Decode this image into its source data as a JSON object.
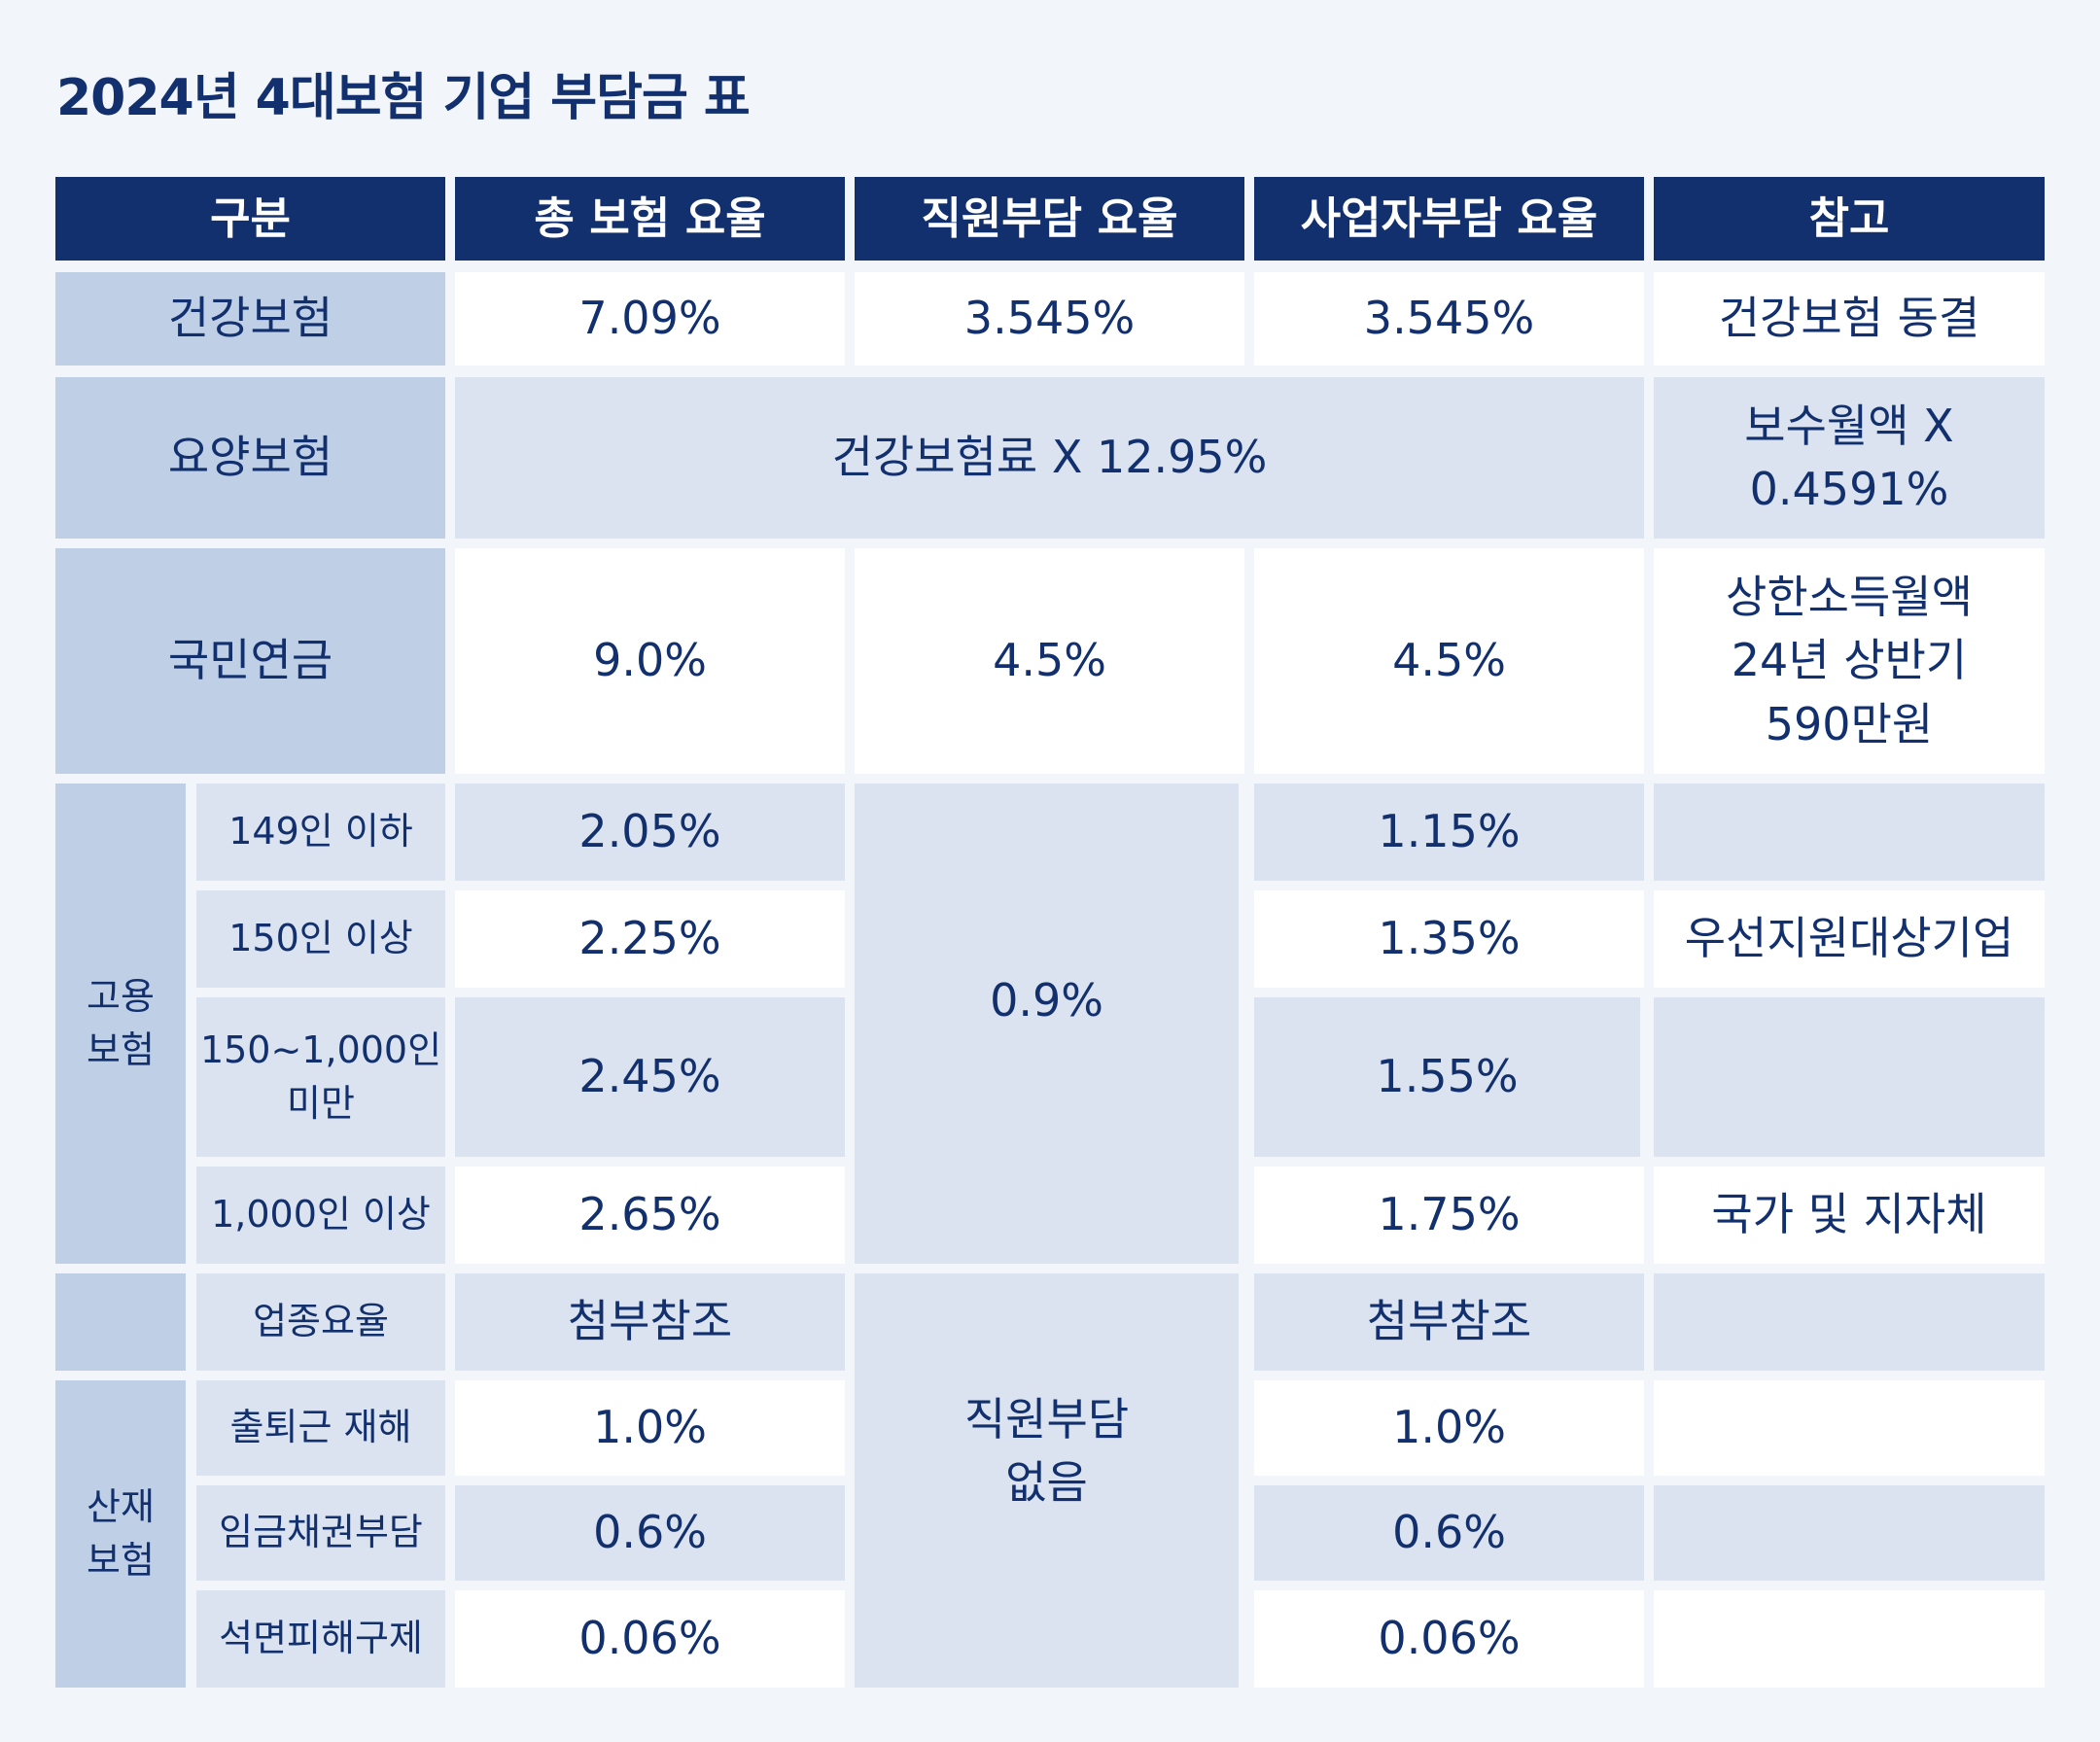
{
  "title": "2024년 4대보험 기업 부담금 표",
  "headers": [
    "구분",
    "총 보험 요율",
    "직원부담 요율",
    "사업자부담 요율",
    "참고"
  ],
  "health": {
    "label": "건강보험",
    "total": "7.09%",
    "employee": "3.545%",
    "employer": "3.545%",
    "note": "건강보험 동결"
  },
  "longterm": {
    "label": "요양보험",
    "rate": "건강보험료 X 12.95%",
    "note_line1": "보수월액 X",
    "note_line2": "0.4591%"
  },
  "pension": {
    "label": "국민연금",
    "total": "9.0%",
    "employee": "4.5%",
    "employer": "4.5%",
    "note_line1": "상한소득월액",
    "note_line2": "24년 상반기",
    "note_line3": "590만원"
  },
  "employment": {
    "label_line1": "고용",
    "label_line2": "보험",
    "employee": "0.9%",
    "rows": [
      {
        "sub": "149인 이하",
        "total": "2.05%",
        "employer": "1.15%",
        "note": ""
      },
      {
        "sub": "150인 이상",
        "total": "2.25%",
        "employer": "1.35%",
        "note": "우선지원대상기업"
      },
      {
        "sub_line1": "150~1,000인",
        "sub_line2": "미만",
        "total": "2.45%",
        "employer": "1.55%",
        "note": ""
      },
      {
        "sub": "1,000인 이상",
        "total": "2.65%",
        "employer": "1.75%",
        "note": "국가 및 지자체"
      }
    ]
  },
  "industrial": {
    "label_line1": "산재",
    "label_line2": "보험",
    "employee_line1": "직원부담",
    "employee_line2": "없음",
    "rows": [
      {
        "sub": "업종요율",
        "total": "첨부참조",
        "employer": "첨부참조"
      },
      {
        "sub": "출퇴근 재해",
        "total": "1.0%",
        "employer": "1.0%"
      },
      {
        "sub": "임금채권부담",
        "total": "0.6%",
        "employer": "0.6%"
      },
      {
        "sub": "석면피해구제",
        "total": "0.06%",
        "employer": "0.06%"
      }
    ]
  },
  "colors": {
    "header": "#13306e",
    "label": "#bfd0e6",
    "light": "#dae3ef",
    "white": "#ffffff",
    "background": "#f2f5fa"
  }
}
